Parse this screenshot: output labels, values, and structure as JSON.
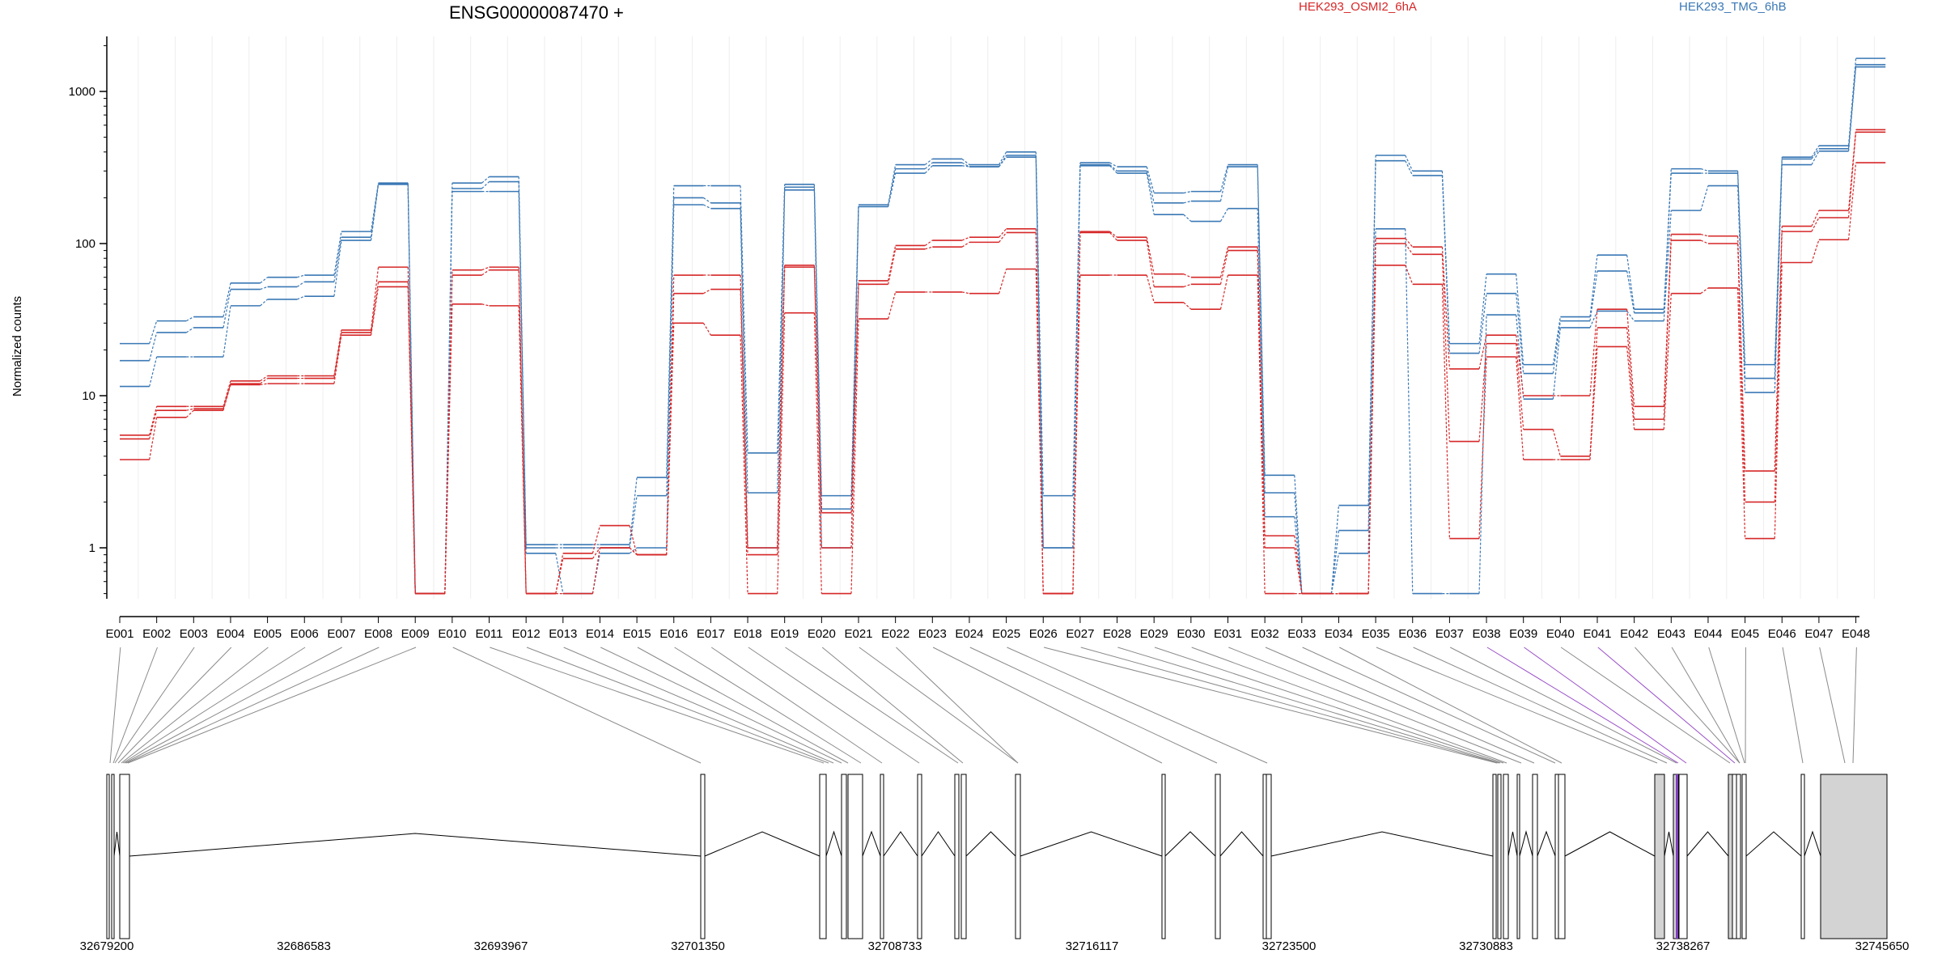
{
  "chart_data": {
    "type": "line",
    "title": "ENSG00000087470 +",
    "ylabel": "Normalized counts",
    "yscale": "log",
    "ylim": [
      0.45,
      2200
    ],
    "yticks": [
      "1",
      "10",
      "100",
      "1000"
    ],
    "yticks_values": [
      1,
      10,
      100,
      1000
    ],
    "grid": "vertical",
    "legend": {
      "placement": "top-right",
      "entries": [
        "HEK293_OSMI2_6hA",
        "HEK293_TMG_6hB"
      ]
    },
    "colors": {
      "HEK293_OSMI2_6hA": "#d62728",
      "HEK293_TMG_6hB": "#3a78b5"
    },
    "categories": [
      "E001",
      "E002",
      "E003",
      "E004",
      "E005",
      "E006",
      "E007",
      "E008",
      "E009",
      "E010",
      "E011",
      "E012",
      "E013",
      "E014",
      "E015",
      "E016",
      "E017",
      "E018",
      "E019",
      "E020",
      "E021",
      "E022",
      "E023",
      "E024",
      "E025",
      "E026",
      "E027",
      "E028",
      "E029",
      "E030",
      "E031",
      "E032",
      "E033",
      "E034",
      "E035",
      "E036",
      "E037",
      "E038",
      "E039",
      "E040",
      "E041",
      "E042",
      "E043",
      "E044",
      "E045",
      "E046",
      "E047",
      "E048"
    ],
    "series": [
      {
        "name": "HEK293_TMG_6hB",
        "group": "HEK293_TMG_6hB",
        "values": [
          22,
          31,
          33,
          55,
          60,
          62,
          120,
          250,
          0.5,
          250,
          275,
          1.05,
          1.05,
          1.05,
          2.9,
          240,
          240,
          4.2,
          245,
          2.2,
          180,
          330,
          360,
          330,
          400,
          2.2,
          340,
          320,
          215,
          220,
          330,
          3.0,
          0.5,
          1.9,
          380,
          300,
          22,
          63,
          16,
          33,
          84,
          37,
          310,
          300,
          16,
          370,
          440,
          1650
        ]
      },
      {
        "name": "HEK293_TMG_6hB",
        "group": "HEK293_TMG_6hB",
        "values": [
          17,
          26,
          28,
          50,
          52,
          56,
          110,
          245,
          0.5,
          230,
          255,
          1.0,
          1.0,
          1.0,
          2.2,
          200,
          185,
          2.3,
          235,
          1.8,
          175,
          310,
          340,
          320,
          380,
          1.0,
          330,
          300,
          185,
          190,
          320,
          2.3,
          0.5,
          1.3,
          350,
          280,
          19,
          47,
          14,
          31,
          66,
          35,
          290,
          290,
          13,
          360,
          420,
          1500
        ]
      },
      {
        "name": "HEK293_TMG_6hB",
        "group": "HEK293_TMG_6hB",
        "values": [
          11.5,
          18,
          18,
          39,
          43,
          45,
          105,
          245,
          0.5,
          220,
          220,
          0.92,
          0.5,
          0.92,
          1.0,
          180,
          170,
          1.0,
          225,
          1.0,
          175,
          290,
          325,
          320,
          370,
          1.0,
          325,
          290,
          155,
          140,
          170,
          1.6,
          0.5,
          0.92,
          125,
          0.5,
          0.5,
          34,
          9.5,
          28,
          36,
          31,
          165,
          240,
          10.5,
          330,
          405,
          1450
        ]
      },
      {
        "name": "HEK293_OSMI2_6hA",
        "group": "HEK293_OSMI2_6hA",
        "values": [
          5.5,
          8.5,
          8.5,
          12.5,
          13.5,
          13.5,
          27,
          70,
          0.5,
          67,
          70,
          0.5,
          0.92,
          1.4,
          0.9,
          62,
          62,
          0.9,
          72,
          1.0,
          57,
          97,
          105,
          110,
          125,
          0.5,
          120,
          110,
          63,
          60,
          95,
          1.2,
          0.5,
          0.5,
          108,
          95,
          15,
          25,
          10,
          10,
          37,
          8.5,
          115,
          112,
          3.2,
          130,
          165,
          560
        ]
      },
      {
        "name": "HEK293_OSMI2_6hA",
        "group": "HEK293_OSMI2_6hA",
        "values": [
          5.2,
          8,
          8.2,
          12,
          13,
          13,
          26,
          56,
          0.5,
          62,
          67,
          0.5,
          0.85,
          1.0,
          0.9,
          47,
          50,
          1.0,
          70,
          1.7,
          54,
          92,
          95,
          102,
          118,
          0.5,
          118,
          105,
          52,
          54,
          90,
          1.0,
          0.5,
          0.5,
          100,
          85,
          5,
          22,
          6,
          4,
          28,
          7,
          105,
          100,
          2.0,
          120,
          148,
          540
        ]
      },
      {
        "name": "HEK293_OSMI2_6hA",
        "group": "HEK293_OSMI2_6hA",
        "values": [
          3.8,
          7.2,
          8,
          11.8,
          12,
          12,
          25,
          52,
          0.5,
          40,
          39,
          0.5,
          0.5,
          1.0,
          0.9,
          30,
          25,
          0.5,
          35,
          0.5,
          32,
          48,
          48,
          47,
          68,
          0.5,
          62,
          62,
          41,
          37,
          62,
          0.5,
          0.5,
          0.5,
          72,
          54,
          1.15,
          18,
          3.8,
          3.8,
          21,
          6,
          47,
          51,
          1.15,
          75,
          106,
          340
        ]
      }
    ],
    "gene_model": {
      "coordinate_labels": [
        "32679200",
        "32686583",
        "32693967",
        "32701350",
        "32708733",
        "32716117",
        "32723500",
        "32730883",
        "32738267",
        "32745650"
      ]
    }
  }
}
